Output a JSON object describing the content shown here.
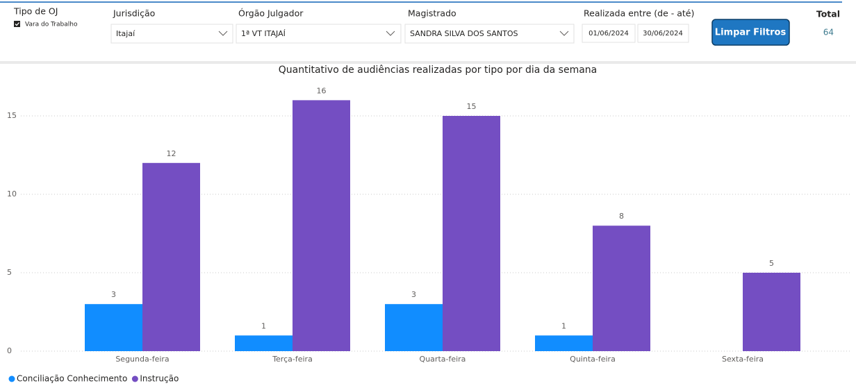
{
  "filters": {
    "tipo_oj": {
      "label": "Tipo de OJ",
      "option": "Vara do Trabalho"
    },
    "jurisdicao": {
      "label": "Jurisdição",
      "value": "Itajaí"
    },
    "orgao": {
      "label": "Órgão Julgador",
      "value": "1ª VT ITAJAÍ"
    },
    "magistrado": {
      "label": "Magistrado",
      "value": "SANDRA SILVA DOS SANTOS"
    },
    "periodo": {
      "label": "Realizada entre (de - até)",
      "from": "01/06/2024",
      "to": "30/06/2024"
    },
    "button": "Limpar Filtros",
    "total": {
      "label": "Total",
      "value": 64
    }
  },
  "chart_data": {
    "type": "bar",
    "title": "Quantitativo de audiências realizadas por tipo por dia da semana",
    "categories": [
      "Segunda-feira",
      "Terça-feira",
      "Quarta-feira",
      "Quinta-feira",
      "Sexta-feira"
    ],
    "series": [
      {
        "name": "Conciliação Conhecimento",
        "color": "#118dff",
        "values": [
          3,
          1,
          3,
          1,
          null
        ]
      },
      {
        "name": "Instrução",
        "color": "#744ec2",
        "values": [
          12,
          16,
          15,
          8,
          5
        ]
      }
    ],
    "ylim": [
      0,
      17.5
    ],
    "yticks": [
      0,
      5,
      10,
      15
    ],
    "grid": true,
    "legend": "bottom-left"
  }
}
